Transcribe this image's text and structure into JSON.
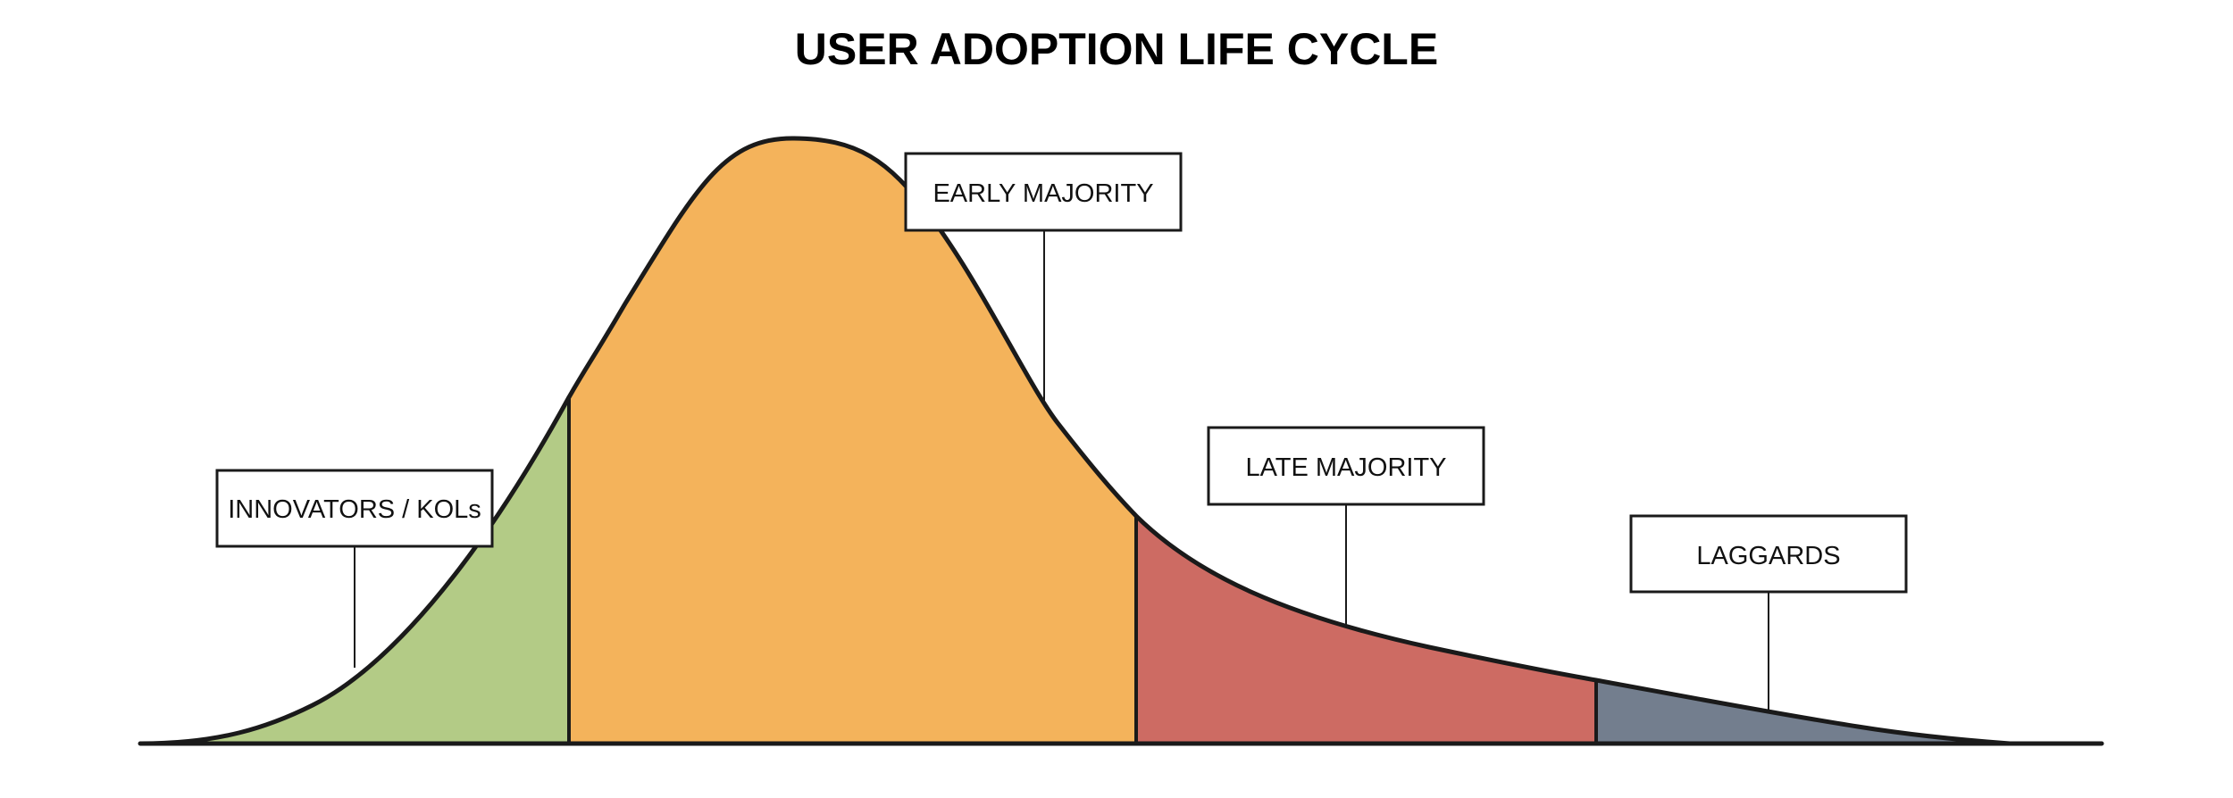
{
  "title": "USER ADOPTION LIFE CYCLE",
  "segments": [
    {
      "id": "innovators",
      "label": "INNOVATORS / KOLs",
      "color": "#b3cb86"
    },
    {
      "id": "early-majority",
      "label": "EARLY MAJORITY",
      "color": "#f4b35b"
    },
    {
      "id": "late-majority",
      "label": "LATE MAJORITY",
      "color": "#cd6b63"
    },
    {
      "id": "laggards",
      "label": "LAGGARDS",
      "color": "#737e8e"
    }
  ]
}
